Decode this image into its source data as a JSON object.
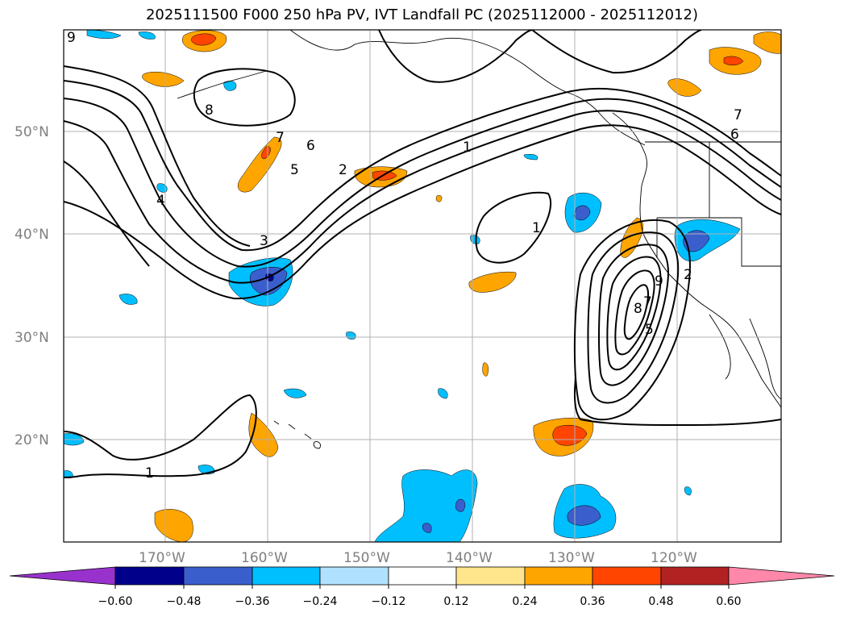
{
  "title": "2025111500 F000 250 hPa PV, IVT Landfall PC (2025112000 - 2025112012)",
  "colors": {
    "purple": "#9932cc",
    "navy": "#00008b",
    "royal": "#3a5fcd",
    "sky": "#00bfff",
    "lightsky": "#b0e2ff",
    "white": "#ffffff",
    "khaki": "#ffe68c",
    "orange": "#ffa500",
    "orangered": "#ff4500",
    "firebrick": "#b22222",
    "pink": "#ff88aa",
    "grid": "#b0b0b0",
    "contour": "#000000"
  },
  "lat_labels": [
    "50°N",
    "40°N",
    "30°N",
    "20°N"
  ],
  "lon_labels": [
    "170°W",
    "160°W",
    "150°W",
    "140°W",
    "130°W",
    "120°W"
  ],
  "colorbar": {
    "ticks": [
      "−0.60",
      "−0.48",
      "−0.36",
      "−0.24",
      "−0.12",
      "0.12",
      "0.24",
      "0.36",
      "0.48",
      "0.60"
    ],
    "extend": "both"
  },
  "contour_labels": [
    "9",
    "8",
    "7",
    "6",
    "5",
    "4",
    "3",
    "2",
    "1",
    "1",
    "1",
    "7",
    "6",
    "8",
    "7",
    "9",
    "5",
    "2"
  ]
}
